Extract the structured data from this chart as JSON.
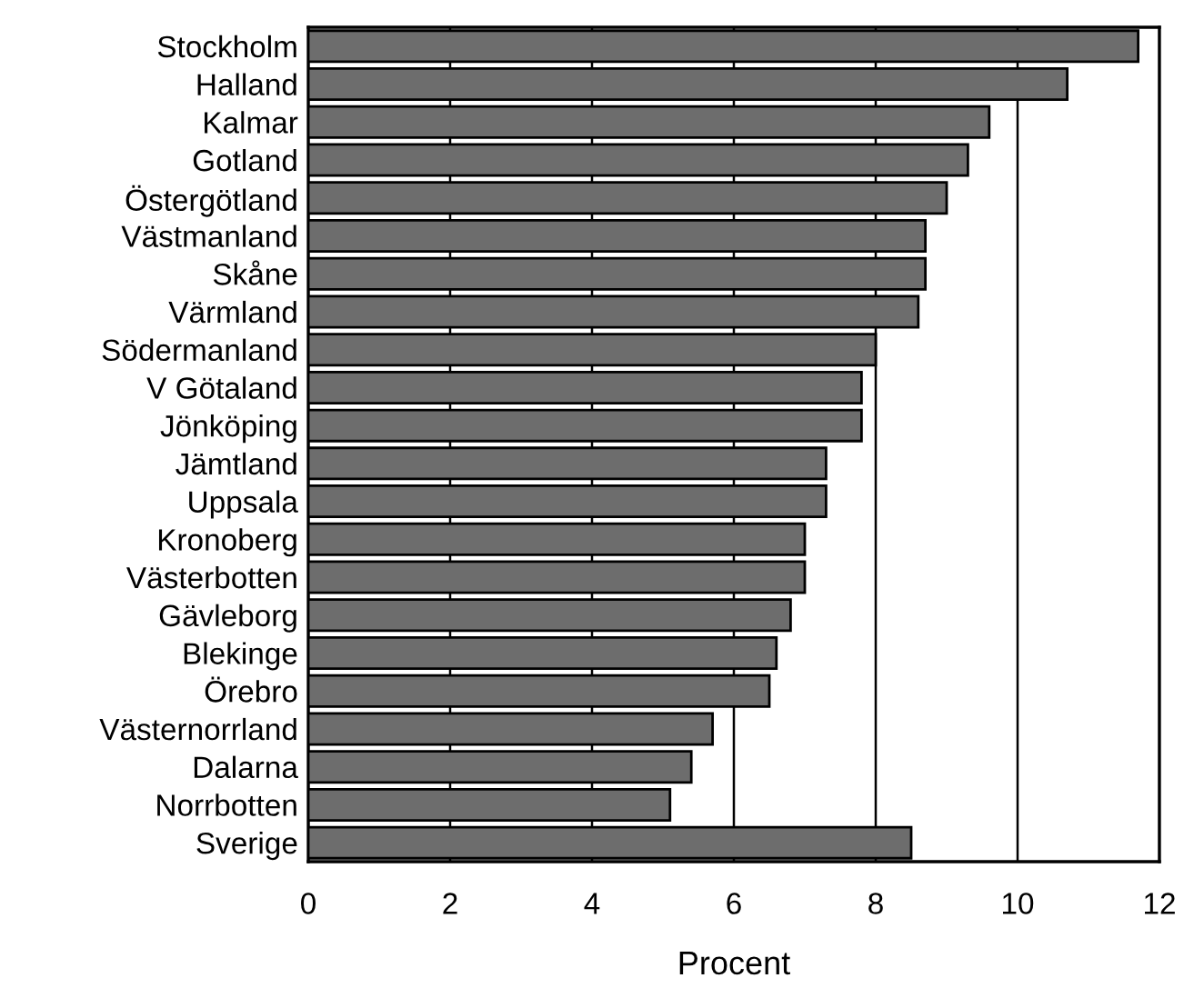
{
  "chart_data": {
    "type": "bar",
    "orientation": "horizontal",
    "xlabel": "Procent",
    "categories": [
      "Stockholm",
      "Halland",
      "Kalmar",
      "Gotland",
      "Östergötland",
      "Västmanland",
      "Skåne",
      "Värmland",
      "Södermanland",
      "V Götaland",
      "Jönköping",
      "Jämtland",
      "Uppsala",
      "Kronoberg",
      "Västerbotten",
      "Gävleborg",
      "Blekinge",
      "Örebro",
      "Västernorrland",
      "Dalarna",
      "Norrbotten",
      "Sverige"
    ],
    "values": [
      11.7,
      10.7,
      9.6,
      9.3,
      9.0,
      8.7,
      8.7,
      8.6,
      8.0,
      7.8,
      7.8,
      7.3,
      7.3,
      7.0,
      7.0,
      6.8,
      6.6,
      6.5,
      5.7,
      5.4,
      5.1,
      8.5
    ],
    "color": "#6d6d6d",
    "xlim": [
      0,
      12
    ],
    "xticks": [
      0,
      2,
      4,
      6,
      8,
      10,
      12
    ],
    "grid": "x"
  }
}
